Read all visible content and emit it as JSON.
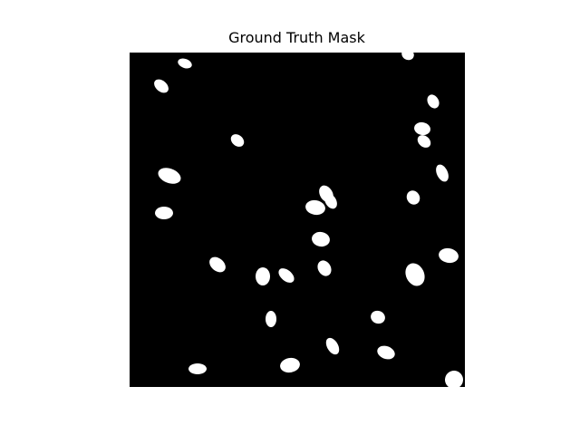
{
  "figure": {
    "title": "Ground Truth Mask"
  },
  "colors": {
    "background": "#000000",
    "foreground": "#ffffff",
    "page": "#ffffff",
    "text": "#000000"
  }
}
